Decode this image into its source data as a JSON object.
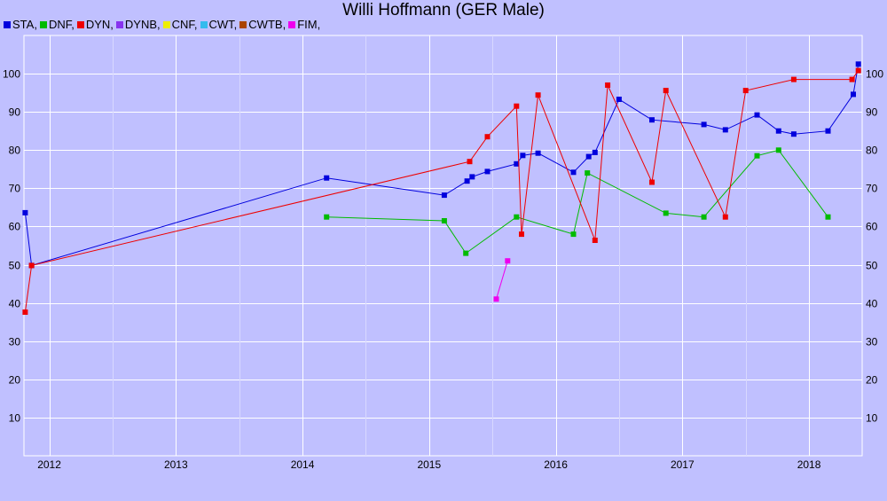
{
  "chart_data": {
    "type": "line",
    "title": "Willi Hoffmann (GER Male)",
    "xlabel": "",
    "ylabel": "",
    "xlim": [
      2011.8,
      2018.42
    ],
    "ylim": [
      0,
      110
    ],
    "grid": true,
    "legend_position": "top-left",
    "x_ticks": [
      {
        "label": "2012",
        "value": 2012
      },
      {
        "label": "2013",
        "value": 2013
      },
      {
        "label": "2014",
        "value": 2014
      },
      {
        "label": "2015",
        "value": 2015
      },
      {
        "label": "2016",
        "value": 2016
      },
      {
        "label": "2017",
        "value": 2017
      },
      {
        "label": "2018",
        "value": 2018
      }
    ],
    "y_ticks": [
      10,
      20,
      30,
      40,
      50,
      60,
      70,
      80,
      90,
      100
    ],
    "legend": [
      {
        "label": "STA,",
        "color": "#0000dd"
      },
      {
        "label": "DNF,",
        "color": "#00bb00"
      },
      {
        "label": "DYN,",
        "color": "#ee0000"
      },
      {
        "label": "DYNB,",
        "color": "#8833ee"
      },
      {
        "label": "CNF,",
        "color": "#eeee00"
      },
      {
        "label": "CWT,",
        "color": "#33bbee"
      },
      {
        "label": "CWTB,",
        "color": "#aa4400"
      },
      {
        "label": "FIM,",
        "color": "#ee00ee"
      }
    ],
    "series": [
      {
        "name": "STA",
        "color": "#0000dd",
        "points": [
          [
            2011.81,
            63.6
          ],
          [
            2011.86,
            49.8
          ],
          [
            2014.19,
            72.7
          ],
          [
            2015.12,
            68.2
          ],
          [
            2015.3,
            71.9
          ],
          [
            2015.34,
            73.0
          ],
          [
            2015.46,
            74.4
          ],
          [
            2015.69,
            76.4
          ],
          [
            2015.74,
            78.6
          ],
          [
            2015.86,
            79.2
          ],
          [
            2016.14,
            74.2
          ],
          [
            2016.26,
            78.3
          ],
          [
            2016.31,
            79.4
          ],
          [
            2016.5,
            93.3
          ],
          [
            2016.76,
            87.9
          ],
          [
            2017.17,
            86.7
          ],
          [
            2017.34,
            85.3
          ],
          [
            2017.59,
            89.2
          ],
          [
            2017.76,
            85.0
          ],
          [
            2017.88,
            84.2
          ],
          [
            2018.15,
            85.0
          ],
          [
            2018.35,
            94.6
          ],
          [
            2018.39,
            102.5
          ]
        ]
      },
      {
        "name": "DNF",
        "color": "#00bb00",
        "points": [
          [
            2014.19,
            62.5
          ],
          [
            2015.12,
            61.5
          ],
          [
            2015.29,
            53.0
          ],
          [
            2015.69,
            62.5
          ],
          [
            2016.14,
            58.0
          ],
          [
            2016.25,
            74.0
          ],
          [
            2016.87,
            63.5
          ],
          [
            2017.17,
            62.5
          ],
          [
            2017.59,
            78.5
          ],
          [
            2017.76,
            80.0
          ],
          [
            2018.15,
            62.5
          ]
        ]
      },
      {
        "name": "DYN",
        "color": "#ee0000",
        "points": [
          [
            2011.81,
            37.6
          ],
          [
            2011.86,
            49.8
          ],
          [
            2015.32,
            77.0
          ],
          [
            2015.46,
            83.5
          ],
          [
            2015.69,
            91.5
          ],
          [
            2015.73,
            58.0
          ],
          [
            2015.86,
            94.4
          ],
          [
            2016.31,
            56.4
          ],
          [
            2016.41,
            97.0
          ],
          [
            2016.76,
            71.6
          ],
          [
            2016.87,
            95.6
          ],
          [
            2017.34,
            62.5
          ],
          [
            2017.5,
            95.6
          ],
          [
            2017.88,
            98.5
          ],
          [
            2018.34,
            98.5
          ],
          [
            2018.39,
            100.8
          ]
        ]
      },
      {
        "name": "FIM",
        "color": "#ee00ee",
        "points": [
          [
            2015.53,
            41.0
          ],
          [
            2015.62,
            51.0
          ]
        ]
      }
    ]
  }
}
